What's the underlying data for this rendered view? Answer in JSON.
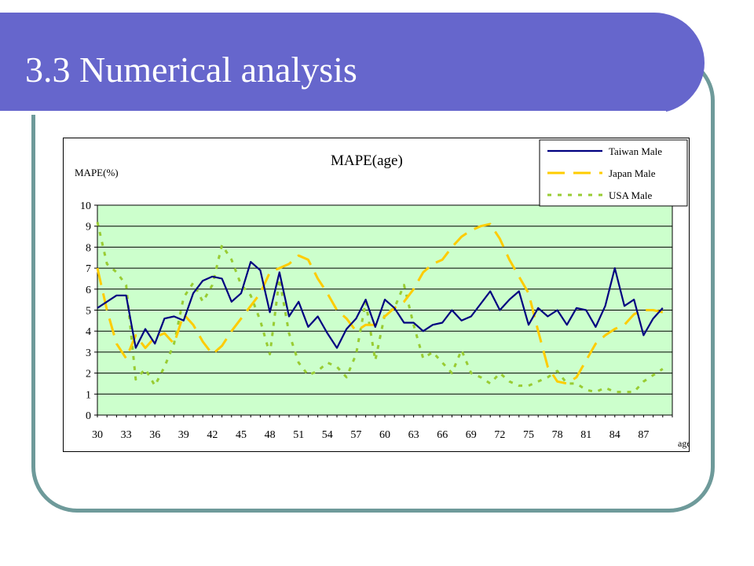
{
  "slide": {
    "title": "3.3 Numerical analysis"
  },
  "colors": {
    "title_bar": "#6666cc",
    "frame_border": "#6e9a9a",
    "plot_bg": "#ccffcc"
  },
  "chart_data": {
    "type": "line",
    "title": "MAPE(age)",
    "ylabel": "MAPE(%)",
    "xlabel": "age",
    "ylim": [
      0,
      10
    ],
    "yticks": [
      "0",
      "1",
      "2",
      "3",
      "4",
      "5",
      "6",
      "7",
      "8",
      "9",
      "10"
    ],
    "xlim": [
      30,
      90
    ],
    "xticks": [
      "30",
      "33",
      "36",
      "39",
      "42",
      "45",
      "48",
      "51",
      "54",
      "57",
      "60",
      "63",
      "66",
      "69",
      "72",
      "75",
      "78",
      "81",
      "84",
      "87"
    ],
    "grid": true,
    "legend_position": "top-right",
    "x": [
      30,
      31,
      32,
      33,
      34,
      35,
      36,
      37,
      38,
      39,
      40,
      41,
      42,
      43,
      44,
      45,
      46,
      47,
      48,
      49,
      50,
      51,
      52,
      53,
      54,
      55,
      56,
      57,
      58,
      59,
      60,
      61,
      62,
      63,
      64,
      65,
      66,
      67,
      68,
      69,
      70,
      71,
      72,
      73,
      74,
      75,
      76,
      77,
      78,
      79,
      80,
      81,
      82,
      83,
      84,
      85,
      86,
      87,
      88,
      89
    ],
    "series": [
      {
        "name": "Taiwan Male",
        "color": "#000080",
        "style": "solid",
        "values": [
          5.1,
          5.4,
          5.7,
          5.7,
          3.2,
          4.1,
          3.4,
          4.6,
          4.7,
          4.5,
          5.8,
          6.4,
          6.6,
          6.5,
          5.4,
          5.8,
          7.3,
          6.9,
          4.9,
          6.8,
          4.7,
          5.4,
          4.2,
          4.7,
          3.9,
          3.2,
          4.1,
          4.6,
          5.5,
          4.2,
          5.5,
          5.1,
          4.4,
          4.4,
          4.0,
          4.3,
          4.4,
          5.0,
          4.5,
          4.7,
          5.3,
          5.9,
          5.0,
          5.5,
          5.9,
          4.3,
          5.1,
          4.7,
          5.0,
          4.3,
          5.1,
          5.0,
          4.2,
          5.2,
          7.0,
          5.2,
          5.5,
          3.8,
          4.6,
          5.1
        ]
      },
      {
        "name": "Japan Male",
        "color": "#ffcc00",
        "style": "dashed",
        "values": [
          7.0,
          5.0,
          3.4,
          2.7,
          3.8,
          3.2,
          3.7,
          3.9,
          3.4,
          4.8,
          4.3,
          3.5,
          2.9,
          3.3,
          4.0,
          4.6,
          5.2,
          5.8,
          6.8,
          7.0,
          7.2,
          7.6,
          7.4,
          6.5,
          5.8,
          5.0,
          4.6,
          4.0,
          4.3,
          4.3,
          4.7,
          5.1,
          5.4,
          6.0,
          6.8,
          7.2,
          7.4,
          8.0,
          8.5,
          8.8,
          9.0,
          9.1,
          8.4,
          7.4,
          6.6,
          5.8,
          4.0,
          2.3,
          1.6,
          1.5,
          1.8,
          2.6,
          3.4,
          3.8,
          4.1,
          4.3,
          4.8,
          5.0,
          5.0,
          4.9
        ]
      },
      {
        "name": "USA Male",
        "color": "#99cc33",
        "style": "dotted",
        "values": [
          9.2,
          7.2,
          6.8,
          6.2,
          1.7,
          2.2,
          1.4,
          2.3,
          3.4,
          5.6,
          6.3,
          5.4,
          6.2,
          8.1,
          7.4,
          6.2,
          5.7,
          4.5,
          2.9,
          6.5,
          3.9,
          2.5,
          1.9,
          2.1,
          2.5,
          2.3,
          1.8,
          2.9,
          5.4,
          2.6,
          4.8,
          5.1,
          6.2,
          4.3,
          2.7,
          3.0,
          2.5,
          2.0,
          3.1,
          2.0,
          1.8,
          1.5,
          2.0,
          1.6,
          1.4,
          1.4,
          1.6,
          1.8,
          2.1,
          1.5,
          1.5,
          1.2,
          1.1,
          1.3,
          1.1,
          1.1,
          1.1,
          1.6,
          1.9,
          2.2
        ]
      }
    ]
  }
}
